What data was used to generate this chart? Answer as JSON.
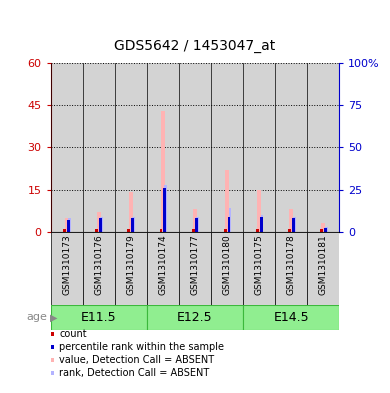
{
  "title": "GDS5642 / 1453047_at",
  "samples": [
    "GSM1310173",
    "GSM1310176",
    "GSM1310179",
    "GSM1310174",
    "GSM1310177",
    "GSM1310180",
    "GSM1310175",
    "GSM1310178",
    "GSM1310181"
  ],
  "age_groups": [
    {
      "label": "E11.5",
      "start": 0,
      "end": 3
    },
    {
      "label": "E12.5",
      "start": 3,
      "end": 6
    },
    {
      "label": "E14.5",
      "start": 6,
      "end": 9
    }
  ],
  "count_values": [
    1,
    1,
    1,
    1,
    1,
    1,
    1,
    1,
    1
  ],
  "rank_values": [
    7,
    8,
    8,
    26,
    8,
    9,
    9,
    8,
    2
  ],
  "absent_value": [
    5,
    7,
    14,
    43,
    8,
    22,
    15,
    8,
    3
  ],
  "absent_rank": [
    8,
    9,
    9,
    28,
    9,
    14,
    10,
    9,
    3
  ],
  "ylim_left": [
    0,
    60
  ],
  "ylim_right": [
    0,
    100
  ],
  "yticks_left": [
    0,
    15,
    30,
    45,
    60
  ],
  "yticks_right": [
    0,
    25,
    50,
    75,
    100
  ],
  "ytick_labels_right": [
    "0",
    "25",
    "50",
    "75",
    "100%"
  ],
  "color_count": "#cc0000",
  "color_rank": "#0000cc",
  "color_absent_value": "#ffb3b3",
  "color_absent_rank": "#b3b3ff",
  "color_bg_sample": "#d3d3d3",
  "color_age_bg": "#90ee90",
  "color_age_border": "#3cb83c",
  "legend_items": [
    {
      "color": "#cc0000",
      "label": "count"
    },
    {
      "color": "#0000cc",
      "label": "percentile rank within the sample"
    },
    {
      "color": "#ffb3b3",
      "label": "value, Detection Call = ABSENT"
    },
    {
      "color": "#b3b3ff",
      "label": "rank, Detection Call = ABSENT"
    }
  ]
}
